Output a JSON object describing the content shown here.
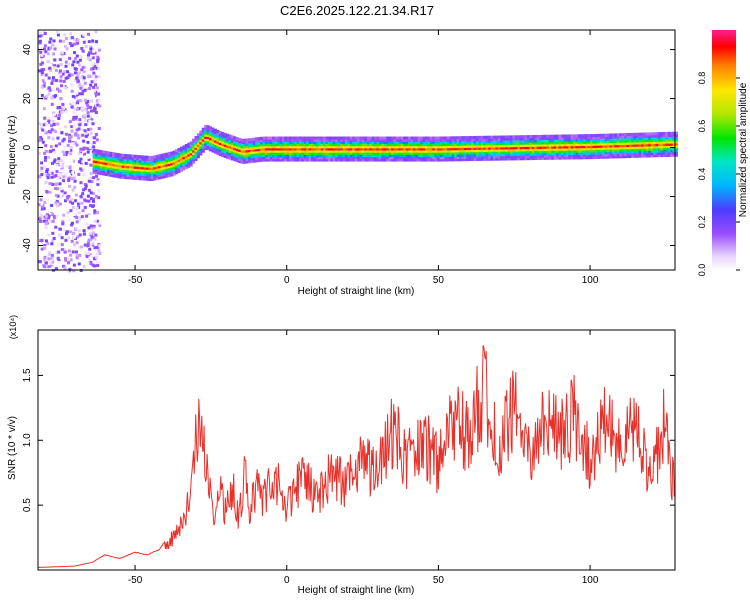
{
  "page_title": "C2E6.2025.122.21.34.R17",
  "chart_data": [
    {
      "type": "heatmap",
      "xlabel": "Height of straight line (km)",
      "ylabel": "Frequency (Hz)",
      "xlim": [
        -82,
        128
      ],
      "ylim": [
        -50,
        48
      ],
      "xticks": [
        -50,
        0,
        50,
        100
      ],
      "yticks": [
        -40,
        -20,
        0,
        20,
        40
      ],
      "colorbar": {
        "label": "Normalized spectral amplitude",
        "range": [
          0,
          1
        ],
        "ticks": [
          "0.0",
          "0.2",
          "0.4",
          "0.6",
          "0.8"
        ]
      },
      "trace_hz": [
        {
          "x": -64,
          "y": -5
        },
        {
          "x": -55,
          "y": -7
        },
        {
          "x": -45,
          "y": -8
        },
        {
          "x": -38,
          "y": -6
        },
        {
          "x": -32,
          "y": -2
        },
        {
          "x": -27,
          "y": 5
        },
        {
          "x": -22,
          "y": 2
        },
        {
          "x": -15,
          "y": -1
        },
        {
          "x": -8,
          "y": 0
        },
        {
          "x": 0,
          "y": 0
        },
        {
          "x": 50,
          "y": 0
        },
        {
          "x": 100,
          "y": 1
        },
        {
          "x": 128,
          "y": 2
        }
      ]
    },
    {
      "type": "line",
      "ylabel": "SNR (10 * v/v)",
      "y_multiplier": "(x10⁴)",
      "xlabel": "Height of straight line (km)",
      "xlim": [
        -82,
        128
      ],
      "ylim": [
        0,
        1.85
      ],
      "xticks": [
        -50,
        0,
        50,
        100
      ],
      "yticks": [
        "0.5",
        "1.0",
        "1.5"
      ],
      "series": [
        {
          "color": "#e8302a",
          "x": [
            -82,
            -70,
            -64,
            -60,
            -55,
            -50,
            -46,
            -42,
            -38,
            -35,
            -32,
            -30,
            -28,
            -26,
            -24,
            -22,
            -20,
            -18,
            -16,
            -14,
            -12,
            -10,
            -8,
            -6,
            -4,
            -2,
            0,
            5,
            10,
            15,
            20,
            25,
            30,
            35,
            40,
            45,
            50,
            55,
            60,
            65,
            70,
            75,
            80,
            85,
            90,
            95,
            100,
            105,
            110,
            115,
            120,
            125,
            128
          ],
          "y": [
            0.02,
            0.03,
            0.06,
            0.12,
            0.09,
            0.14,
            0.12,
            0.16,
            0.3,
            0.45,
            0.7,
            1.2,
            1.5,
            0.9,
            0.6,
            0.75,
            0.55,
            0.85,
            0.5,
            0.95,
            0.6,
            0.85,
            0.7,
            0.8,
            0.95,
            0.78,
            0.6,
            0.95,
            0.7,
            1.0,
            0.85,
            1.1,
            0.95,
            1.4,
            1.1,
            1.3,
            1.05,
            1.5,
            1.3,
            1.8,
            1.2,
            1.6,
            1.1,
            1.5,
            1.3,
            1.55,
            1.05,
            1.45,
            1.2,
            1.4,
            0.9,
            1.5,
            0.7
          ]
        }
      ]
    }
  ]
}
